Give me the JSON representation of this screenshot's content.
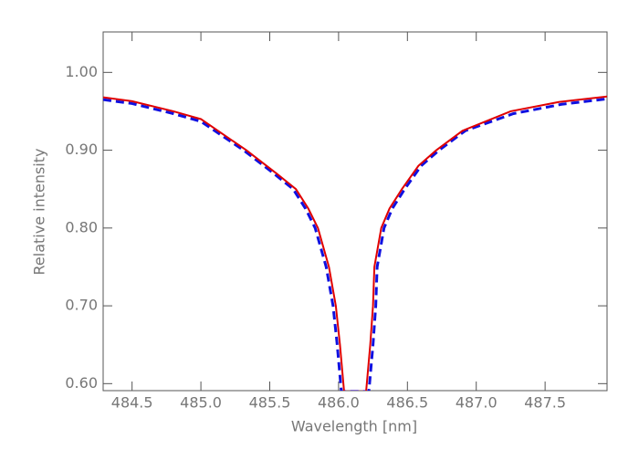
{
  "chart_data": {
    "type": "line",
    "xlabel": "Wavelength [nm]",
    "ylabel": "Relative intensity",
    "xlim": [
      484.29,
      487.95
    ],
    "ylim": [
      0.591,
      1.052
    ],
    "xticks": [
      484.5,
      {
        "value": 485.0,
        "label": "485.0"
      },
      485.5,
      {
        "value": 486.0,
        "label": "486.0"
      },
      486.5,
      {
        "value": 487.0,
        "label": "487.0"
      },
      487.5
    ],
    "yticks": [
      {
        "value": 0.6,
        "label": "0.60"
      },
      {
        "value": 0.7,
        "label": "0.70"
      },
      {
        "value": 0.8,
        "label": "0.80"
      },
      {
        "value": 0.9,
        "label": "0.90"
      },
      {
        "value": 1.0,
        "label": "1.00"
      }
    ],
    "series": [
      {
        "color": "#e00000",
        "dash": "solid",
        "x": [
          484.29,
          484.5,
          484.8,
          485.0,
          485.33,
          485.55,
          485.69,
          485.78,
          485.85,
          485.93,
          485.98,
          486.01,
          486.04,
          486.2,
          486.23,
          486.25,
          486.26,
          486.31,
          486.37,
          486.46,
          486.58,
          486.71,
          486.9,
          487.25,
          487.6,
          487.95
        ],
        "values": [
          0.968,
          0.963,
          0.95,
          0.94,
          0.9,
          0.87,
          0.85,
          0.825,
          0.8,
          0.75,
          0.7,
          0.65,
          0.59,
          0.59,
          0.65,
          0.7,
          0.75,
          0.8,
          0.825,
          0.85,
          0.88,
          0.9,
          0.925,
          0.95,
          0.962,
          0.969
        ]
      },
      {
        "color": "#1010e0",
        "dash": "dashed",
        "x": [
          484.29,
          484.5,
          484.8,
          485.0,
          485.31,
          485.53,
          485.67,
          485.76,
          485.83,
          485.91,
          485.96,
          485.99,
          486.02,
          486.22,
          486.25,
          486.27,
          486.28,
          486.33,
          486.39,
          486.48,
          486.6,
          486.73,
          486.92,
          487.27,
          487.62,
          487.95
        ],
        "values": [
          0.965,
          0.96,
          0.947,
          0.937,
          0.9,
          0.87,
          0.85,
          0.825,
          0.8,
          0.75,
          0.7,
          0.65,
          0.59,
          0.59,
          0.65,
          0.7,
          0.75,
          0.8,
          0.825,
          0.85,
          0.88,
          0.9,
          0.925,
          0.947,
          0.959,
          0.966
        ]
      }
    ]
  }
}
